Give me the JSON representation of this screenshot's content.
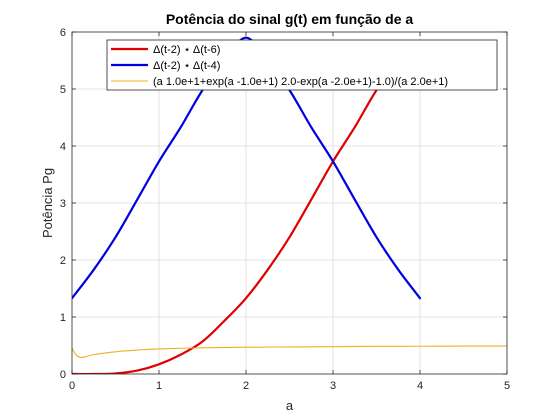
{
  "chart_data": {
    "type": "line",
    "title": "Potência do sinal g(t) em função de a",
    "xlabel": "a",
    "ylabel": "Potência Pg",
    "xlim": [
      0,
      5
    ],
    "ylim": [
      0,
      6
    ],
    "xticks": [
      0,
      1,
      2,
      3,
      4,
      5
    ],
    "yticks": [
      0,
      1,
      2,
      3,
      4,
      5,
      6
    ],
    "x_tick_labels": [
      "0",
      "1",
      "2",
      "3",
      "4",
      "5"
    ],
    "y_tick_labels": [
      "0",
      "1",
      "2",
      "3",
      "4",
      "5",
      "6"
    ],
    "grid": true,
    "legend_position": "top-right",
    "series": [
      {
        "name": "Δ(t-2)  ⋆  Δ(t-6)",
        "color": "#e00000",
        "line_width": "thick",
        "x": [
          0,
          0.25,
          0.5,
          0.75,
          1.0,
          1.25,
          1.5,
          1.75,
          2.0,
          2.25,
          2.5,
          2.75,
          3.0,
          3.25,
          3.5,
          3.75
        ],
        "y": [
          0,
          0.0,
          0.01,
          0.06,
          0.17,
          0.34,
          0.57,
          0.93,
          1.33,
          1.83,
          2.4,
          3.06,
          3.73,
          4.33,
          4.98,
          5.5
        ]
      },
      {
        "name": "Δ(t-2)  ⋆  Δ(t-4)",
        "color": "#0000e0",
        "line_width": "thick",
        "x": [
          0,
          0.25,
          0.5,
          0.75,
          1.0,
          1.25,
          1.5,
          1.75,
          2.0,
          2.25,
          2.5,
          2.75,
          3.0,
          3.25,
          3.5,
          3.75,
          4.0
        ],
        "y": [
          1.33,
          1.83,
          2.4,
          3.06,
          3.73,
          4.33,
          4.98,
          5.5,
          5.9,
          5.5,
          4.98,
          4.33,
          3.73,
          3.06,
          2.4,
          1.83,
          1.33
        ]
      },
      {
        "name": "(a  1.0e+1+exp(a  -1.0e+1)  2.0-exp(a  -2.0e+1)-1.0)/(a  2.0e+1)",
        "color": "#edb120",
        "line_width": "thin",
        "x": [
          0,
          0.05,
          0.1,
          0.15,
          0.25,
          0.5,
          0.75,
          1.0,
          1.5,
          2.0,
          2.5,
          3.0,
          3.5,
          4.0,
          4.5,
          5.0
        ],
        "y": [
          0.45,
          0.33,
          0.29,
          0.3,
          0.34,
          0.39,
          0.42,
          0.44,
          0.46,
          0.47,
          0.475,
          0.48,
          0.485,
          0.487,
          0.49,
          0.49
        ]
      }
    ]
  }
}
